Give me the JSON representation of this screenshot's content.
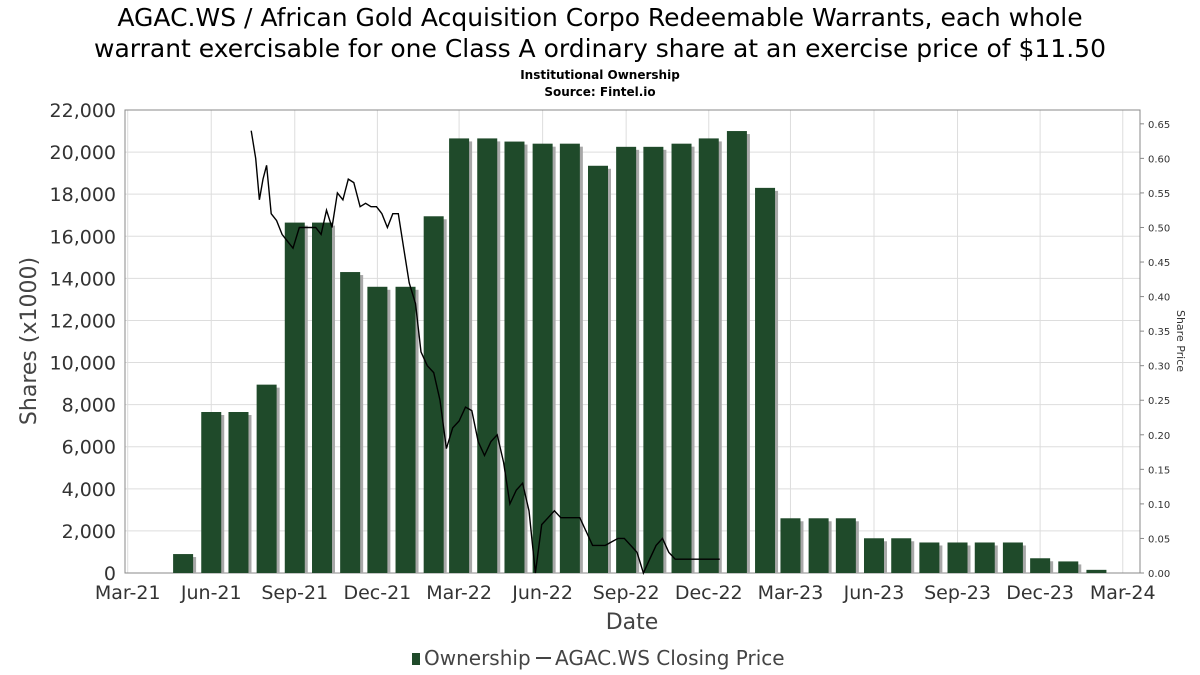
{
  "title_line1": "AGAC.WS / African Gold Acquisition Corpo Redeemable Warrants, each whole",
  "title_line2": "warrant exercisable for one Class A ordinary share at an exercise price of $11.50",
  "subtitle": "Institutional Ownership",
  "source": "Source: Fintel.io",
  "colors": {
    "bar": "#1f4a2a",
    "bar_shadow": "#a8a8a8",
    "line": "#000000",
    "grid": "#dddddd"
  },
  "chart_data": {
    "type": "bar",
    "xlabel": "Date",
    "ylabel": "Shares (x1000)",
    "y2label": "Share Price",
    "ylim": [
      0,
      22000
    ],
    "y2lim": [
      0,
      0.67
    ],
    "y_ticks": [
      "0",
      "2,000",
      "4,000",
      "6,000",
      "8,000",
      "10,000",
      "12,000",
      "14,000",
      "16,000",
      "18,000",
      "20,000",
      "22,000"
    ],
    "y2_ticks": [
      "0.00",
      "0.05",
      "0.10",
      "0.15",
      "0.20",
      "0.25",
      "0.30",
      "0.35",
      "0.40",
      "0.45",
      "0.50",
      "0.55",
      "0.60",
      "0.65"
    ],
    "x_ticks": [
      "Mar-21",
      "Jun-21",
      "Sep-21",
      "Dec-21",
      "Mar-22",
      "Jun-22",
      "Sep-22",
      "Dec-22",
      "Mar-23",
      "Jun-23",
      "Sep-23",
      "Dec-23",
      "Mar-24"
    ],
    "legend": "bottom-center",
    "grid": true,
    "series": [
      {
        "name": "Ownership",
        "type": "bar",
        "x": [
          "2021-05-01",
          "2021-06-01",
          "2021-07-01",
          "2021-08-01",
          "2021-09-01",
          "2021-10-01",
          "2021-11-01",
          "2021-12-01",
          "2022-01-01",
          "2022-02-01",
          "2022-03-01",
          "2022-04-01",
          "2022-05-01",
          "2022-06-01",
          "2022-07-01",
          "2022-08-01",
          "2022-09-01",
          "2022-10-01",
          "2022-11-01",
          "2022-12-01",
          "2023-01-01",
          "2023-02-01",
          "2023-03-01",
          "2023-04-01",
          "2023-05-01",
          "2023-06-01",
          "2023-07-01",
          "2023-08-01",
          "2023-09-01",
          "2023-10-01",
          "2023-11-01",
          "2023-12-01",
          "2024-01-01",
          "2024-02-01"
        ],
        "values": [
          900,
          7650,
          7650,
          8950,
          16650,
          16650,
          14300,
          13600,
          13600,
          16950,
          20650,
          20650,
          20500,
          20400,
          20400,
          19350,
          20250,
          20250,
          20400,
          20650,
          21000,
          18300,
          2600,
          2600,
          2600,
          1650,
          1650,
          1450,
          1450,
          1450,
          1450,
          700,
          550,
          150
        ]
      },
      {
        "name": "AGAC.WS Closing Price",
        "type": "line",
        "x": [
          "2021-07-15",
          "2021-07-20",
          "2021-07-24",
          "2021-07-28",
          "2021-08-01",
          "2021-08-06",
          "2021-08-12",
          "2021-08-18",
          "2021-08-24",
          "2021-08-30",
          "2021-09-06",
          "2021-09-12",
          "2021-09-18",
          "2021-09-24",
          "2021-09-30",
          "2021-10-06",
          "2021-10-12",
          "2021-10-18",
          "2021-10-24",
          "2021-10-30",
          "2021-11-05",
          "2021-11-12",
          "2021-11-18",
          "2021-11-24",
          "2021-11-30",
          "2021-12-06",
          "2021-12-12",
          "2021-12-18",
          "2021-12-24",
          "2021-12-30",
          "2022-01-05",
          "2022-01-12",
          "2022-01-18",
          "2022-01-25",
          "2022-02-01",
          "2022-02-08",
          "2022-02-15",
          "2022-02-22",
          "2022-03-01",
          "2022-03-08",
          "2022-03-15",
          "2022-03-22",
          "2022-03-29",
          "2022-04-05",
          "2022-04-12",
          "2022-04-19",
          "2022-04-26",
          "2022-05-03",
          "2022-05-10",
          "2022-05-17",
          "2022-05-24",
          "2022-05-31",
          "2022-06-07",
          "2022-06-14",
          "2022-06-21",
          "2022-06-28",
          "2022-07-05",
          "2022-07-12",
          "2022-07-19",
          "2022-07-26",
          "2022-08-02",
          "2022-08-09",
          "2022-08-16",
          "2022-08-23",
          "2022-08-30",
          "2022-09-06",
          "2022-09-13",
          "2022-09-20",
          "2022-09-27",
          "2022-10-04",
          "2022-10-11",
          "2022-10-18",
          "2022-10-25",
          "2022-11-01",
          "2022-11-08",
          "2022-11-15",
          "2022-11-22",
          "2022-11-29",
          "2022-12-06",
          "2022-12-13"
        ],
        "values": [
          0.64,
          0.6,
          0.54,
          0.57,
          0.59,
          0.52,
          0.51,
          0.49,
          0.48,
          0.47,
          0.5,
          0.5,
          0.5,
          0.5,
          0.49,
          0.525,
          0.5,
          0.55,
          0.54,
          0.57,
          0.565,
          0.53,
          0.535,
          0.53,
          0.53,
          0.52,
          0.5,
          0.52,
          0.52,
          0.47,
          0.42,
          0.39,
          0.32,
          0.3,
          0.29,
          0.25,
          0.18,
          0.21,
          0.22,
          0.24,
          0.235,
          0.19,
          0.17,
          0.19,
          0.2,
          0.16,
          0.1,
          0.12,
          0.13,
          0.09,
          0.0,
          0.07,
          0.08,
          0.09,
          0.08,
          0.08,
          0.08,
          0.08,
          0.06,
          0.04,
          0.04,
          0.04,
          0.045,
          0.05,
          0.05,
          0.04,
          0.03,
          0.0,
          0.02,
          0.04,
          0.05,
          0.03,
          0.02,
          0.02,
          0.02,
          0.02,
          0.02,
          0.02,
          0.02,
          0.02
        ]
      }
    ]
  }
}
